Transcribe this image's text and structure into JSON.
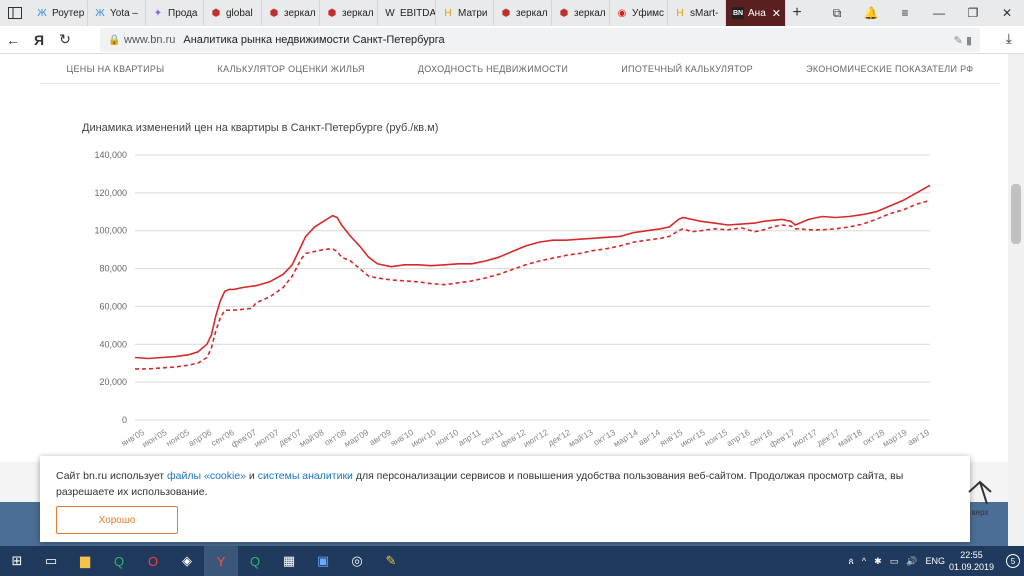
{
  "browser": {
    "tabs": [
      {
        "label": "Роутер",
        "icon": "yandex-market-icon",
        "glyph": "Ж",
        "color": "#3a8ee6"
      },
      {
        "label": "Yota –",
        "icon": "yota-icon",
        "glyph": "Ж",
        "color": "#3a8ee6"
      },
      {
        "label": "Прода",
        "icon": "star-icon",
        "glyph": "✦",
        "color": "#8b5cf6"
      },
      {
        "label": "global",
        "icon": "hexagon-icon",
        "glyph": "⬢",
        "color": "#c03030"
      },
      {
        "label": "зеркал",
        "icon": "hexagon-icon",
        "glyph": "⬢",
        "color": "#c03030"
      },
      {
        "label": "зеркал",
        "icon": "hexagon-icon",
        "glyph": "⬢",
        "color": "#c03030"
      },
      {
        "label": "EBITDA",
        "icon": "wikipedia-icon",
        "glyph": "W",
        "color": "#222"
      },
      {
        "label": "Матри",
        "icon": "h-icon",
        "glyph": "H",
        "color": "#e0a000"
      },
      {
        "label": "зеркал",
        "icon": "hexagon-icon",
        "glyph": "⬢",
        "color": "#c03030"
      },
      {
        "label": "зеркал",
        "icon": "hexagon-icon",
        "glyph": "⬢",
        "color": "#c03030"
      },
      {
        "label": "Уфимс",
        "icon": "radio-icon",
        "glyph": "◉",
        "color": "#d02020"
      },
      {
        "label": "sMart-",
        "icon": "h-icon",
        "glyph": "H",
        "color": "#e0a000"
      },
      {
        "label": "Ана",
        "icon": "bn-icon",
        "glyph": "BN",
        "color": "#fff",
        "active": true
      }
    ],
    "new_tab": "+",
    "url_domain": "www.bn.ru",
    "page_title": "Аналитика рынка недвижимости Санкт-Петербурга"
  },
  "site_nav": [
    "ЦЕНЫ НА КВАРТИРЫ",
    "КАЛЬКУЛЯТОР ОЦЕНКИ ЖИЛЬЯ",
    "ДОХОДНОСТЬ НЕДВИЖИМОСТИ",
    "ИПОТЕЧНЫЙ КАЛЬКУЛЯТОР",
    "ЭКОНОМИЧЕСКИЕ ПОКАЗАТЕЛИ РФ"
  ],
  "chart_data": {
    "type": "line",
    "title": "Динамика изменений цен на квартиры в Санкт-Петербурге (руб./кв.м)",
    "ylim": [
      0,
      140000
    ],
    "yticks": [
      "0",
      "20,000",
      "40,000",
      "60,000",
      "80,000",
      "100,000",
      "120,000",
      "140,000"
    ],
    "xlabels": [
      "янв'05",
      "июн'05",
      "ноя'05",
      "апр'06",
      "сен'06",
      "фев'07",
      "июл'07",
      "дек'07",
      "май'08",
      "окт'08",
      "мар'09",
      "авг'09",
      "янв'10",
      "июн'10",
      "ноя'10",
      "апр'11",
      "сен'11",
      "фев'12",
      "июл'12",
      "дек'12",
      "май'13",
      "окт'13",
      "мар'14",
      "авг'14",
      "янв'15",
      "июн'15",
      "ноя'15",
      "апр'16",
      "сен'16",
      "фев'17",
      "июл'17",
      "дек'17",
      "май'18",
      "окт'18",
      "мар'19",
      "авг'19"
    ],
    "x_months": [
      0,
      6,
      12,
      18,
      24,
      30,
      36,
      42,
      48,
      51,
      54,
      60,
      66,
      72,
      78,
      84,
      90,
      96,
      102,
      108,
      114,
      120,
      126,
      132,
      138,
      144,
      150,
      156,
      162,
      168,
      174,
      180,
      186,
      192,
      198,
      204,
      210,
      216,
      222,
      228,
      234,
      240,
      246,
      252,
      258,
      264,
      270,
      276,
      282,
      288,
      294,
      300,
      306,
      312,
      318,
      324,
      330,
      336,
      342,
      348,
      354,
      360,
      366,
      372,
      378,
      384,
      390,
      396,
      402,
      408,
      414,
      420,
      426,
      432,
      438,
      444,
      450,
      456,
      462,
      468,
      474,
      480,
      486,
      492,
      498,
      504,
      510,
      516,
      522,
      528,
      534,
      540,
      546,
      552,
      558,
      564,
      570,
      576,
      582,
      588,
      594,
      600,
      606,
      612,
      618,
      624,
      630,
      636,
      642,
      648,
      654,
      660,
      666,
      672,
      678,
      684,
      690,
      696,
      702,
      708,
      714,
      720,
      726,
      732,
      738,
      744,
      750,
      756,
      762,
      768,
      774,
      780,
      786,
      792,
      798,
      804,
      810,
      816,
      822,
      828,
      834,
      840,
      846,
      852,
      858,
      864,
      870,
      876,
      882,
      888,
      894,
      900,
      906,
      912,
      918,
      924,
      930,
      936,
      942,
      948,
      954,
      960,
      966,
      972,
      978,
      984,
      990,
      996,
      1002,
      1008,
      1014,
      1020,
      1026,
      1032,
      1038,
      1044,
      1050
    ],
    "series": [
      {
        "style": "solid",
        "color": "#d62a2a",
        "points": [
          [
            0,
            33000
          ],
          [
            3,
            32500
          ],
          [
            6,
            33000
          ],
          [
            9,
            33500
          ],
          [
            12,
            34500
          ],
          [
            14,
            36000
          ],
          [
            16,
            40000
          ],
          [
            17,
            45000
          ],
          [
            18,
            55000
          ],
          [
            19,
            63000
          ],
          [
            20,
            68000
          ],
          [
            21,
            69000
          ],
          [
            22,
            69000
          ],
          [
            24,
            70000
          ],
          [
            27,
            71000
          ],
          [
            30,
            73000
          ],
          [
            33,
            77000
          ],
          [
            35,
            82000
          ],
          [
            37,
            92000
          ],
          [
            38,
            97000
          ],
          [
            40,
            102000
          ],
          [
            42,
            105000
          ],
          [
            44,
            108000
          ],
          [
            45,
            107000
          ],
          [
            46,
            103000
          ],
          [
            48,
            97000
          ],
          [
            50,
            92000
          ],
          [
            52,
            86000
          ],
          [
            54,
            82500
          ],
          [
            57,
            81000
          ],
          [
            60,
            82000
          ],
          [
            63,
            82000
          ],
          [
            66,
            81500
          ],
          [
            69,
            82000
          ],
          [
            72,
            82500
          ],
          [
            75,
            82500
          ],
          [
            78,
            84000
          ],
          [
            81,
            86000
          ],
          [
            84,
            89000
          ],
          [
            87,
            92000
          ],
          [
            90,
            94000
          ],
          [
            93,
            95000
          ],
          [
            96,
            95000
          ],
          [
            99,
            95500
          ],
          [
            102,
            96000
          ],
          [
            105,
            96500
          ],
          [
            108,
            97000
          ],
          [
            111,
            99000
          ],
          [
            114,
            100000
          ],
          [
            117,
            101000
          ],
          [
            119,
            102000
          ],
          [
            121,
            106000
          ],
          [
            122,
            107000
          ],
          [
            124,
            106000
          ],
          [
            126,
            105000
          ],
          [
            129,
            104000
          ],
          [
            132,
            103000
          ],
          [
            135,
            103500
          ],
          [
            138,
            104000
          ],
          [
            140,
            105000
          ],
          [
            142,
            105500
          ],
          [
            144,
            106000
          ],
          [
            146,
            105000
          ],
          [
            147,
            103000
          ],
          [
            148,
            104000
          ],
          [
            150,
            106000
          ],
          [
            153,
            107500
          ],
          [
            156,
            107000
          ],
          [
            159,
            107500
          ],
          [
            162,
            108500
          ],
          [
            165,
            110000
          ],
          [
            168,
            113000
          ],
          [
            171,
            116000
          ],
          [
            174,
            120000
          ],
          [
            177,
            124000
          ]
        ]
      },
      {
        "style": "dashed",
        "color": "#d62a2a",
        "points": [
          [
            0,
            27000
          ],
          [
            3,
            27000
          ],
          [
            6,
            27500
          ],
          [
            9,
            28000
          ],
          [
            12,
            29000
          ],
          [
            14,
            30000
          ],
          [
            16,
            33000
          ],
          [
            17,
            38000
          ],
          [
            18,
            47000
          ],
          [
            19,
            54000
          ],
          [
            20,
            58000
          ],
          [
            22,
            58000
          ],
          [
            24,
            58500
          ],
          [
            26,
            59000
          ],
          [
            27,
            62000
          ],
          [
            30,
            65000
          ],
          [
            33,
            70000
          ],
          [
            35,
            76000
          ],
          [
            37,
            85000
          ],
          [
            38,
            88000
          ],
          [
            40,
            89000
          ],
          [
            42,
            90000
          ],
          [
            44,
            90500
          ],
          [
            45,
            89000
          ],
          [
            46,
            86000
          ],
          [
            48,
            84000
          ],
          [
            50,
            80000
          ],
          [
            52,
            76000
          ],
          [
            54,
            75000
          ],
          [
            57,
            74000
          ],
          [
            60,
            73500
          ],
          [
            63,
            73000
          ],
          [
            66,
            72000
          ],
          [
            69,
            71500
          ],
          [
            72,
            72500
          ],
          [
            75,
            73500
          ],
          [
            78,
            75000
          ],
          [
            81,
            77000
          ],
          [
            84,
            79500
          ],
          [
            87,
            82000
          ],
          [
            90,
            84000
          ],
          [
            93,
            85500
          ],
          [
            96,
            87000
          ],
          [
            99,
            88000
          ],
          [
            102,
            89500
          ],
          [
            105,
            90500
          ],
          [
            108,
            92000
          ],
          [
            111,
            94000
          ],
          [
            114,
            95000
          ],
          [
            117,
            96000
          ],
          [
            119,
            97000
          ],
          [
            121,
            100000
          ],
          [
            122,
            101000
          ],
          [
            124,
            99500
          ],
          [
            126,
            100000
          ],
          [
            129,
            101000
          ],
          [
            132,
            100500
          ],
          [
            135,
            101500
          ],
          [
            138,
            99500
          ],
          [
            140,
            100500
          ],
          [
            142,
            102000
          ],
          [
            144,
            103000
          ],
          [
            146,
            102500
          ],
          [
            147,
            101000
          ],
          [
            148,
            101000
          ],
          [
            150,
            100500
          ],
          [
            153,
            100500
          ],
          [
            156,
            101000
          ],
          [
            159,
            102000
          ],
          [
            162,
            103500
          ],
          [
            165,
            106000
          ],
          [
            168,
            109000
          ],
          [
            171,
            111000
          ],
          [
            174,
            114000
          ],
          [
            177,
            116000
          ]
        ]
      }
    ]
  },
  "cookie": {
    "text_before": "Сайт bn.ru использует ",
    "link1": "файлы «cookie»",
    "mid": " и ",
    "link2": "системы аналитики",
    "text_after": " для персонализации сервисов и повышения удобства пользования веб-сайтом. Продолжая просмотр сайта, вы разрешаете их использование.",
    "button": "Хорошо"
  },
  "up_button": "верх",
  "taskbar": {
    "lang": "ENG",
    "time": "22:55",
    "date": "01.09.2019",
    "notif": "5"
  }
}
